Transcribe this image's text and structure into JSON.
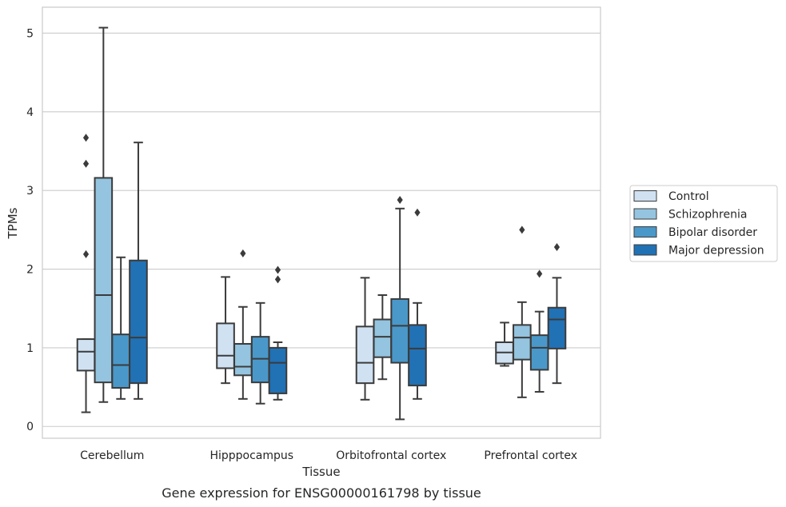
{
  "chart_data": {
    "type": "boxplot",
    "caption": "Gene expression for ENSG00000161798 by tissue",
    "xlabel": "Tissue",
    "ylabel": "TPMs",
    "ylim": [
      -0.15,
      5.33
    ],
    "yticks": [
      0,
      1,
      2,
      3,
      4,
      5
    ],
    "grid": "horizontal",
    "legend_position": "right",
    "categories": [
      "Cerebellum",
      "Hipppocampus",
      "Orbitofrontal cortex",
      "Prefrontal cortex"
    ],
    "series": [
      {
        "name": "Control",
        "color": "#d0e1f2",
        "boxes": [
          {
            "whislo": 0.18,
            "q1": 0.71,
            "med": 0.95,
            "q3": 1.11,
            "whishi": 1.11,
            "fliers": [
              3.67,
              3.34,
              2.19
            ]
          },
          {
            "whislo": 0.55,
            "q1": 0.74,
            "med": 0.9,
            "q3": 1.31,
            "whishi": 1.9,
            "fliers": []
          },
          {
            "whislo": 0.34,
            "q1": 0.55,
            "med": 0.81,
            "q3": 1.27,
            "whishi": 1.89,
            "fliers": []
          },
          {
            "whislo": 0.77,
            "q1": 0.8,
            "med": 0.94,
            "q3": 1.07,
            "whishi": 1.32,
            "fliers": []
          }
        ]
      },
      {
        "name": "Schizophrenia",
        "color": "#94c4df",
        "boxes": [
          {
            "whislo": 0.31,
            "q1": 0.56,
            "med": 1.67,
            "q3": 3.16,
            "whishi": 5.07,
            "fliers": []
          },
          {
            "whislo": 0.35,
            "q1": 0.65,
            "med": 0.76,
            "q3": 1.05,
            "whishi": 1.52,
            "fliers": [
              2.2
            ]
          },
          {
            "whislo": 0.6,
            "q1": 0.88,
            "med": 1.14,
            "q3": 1.36,
            "whishi": 1.67,
            "fliers": []
          },
          {
            "whislo": 0.37,
            "q1": 0.85,
            "med": 1.13,
            "q3": 1.29,
            "whishi": 1.58,
            "fliers": [
              2.5
            ]
          }
        ]
      },
      {
        "name": "Bipolar disorder",
        "color": "#4a98c9",
        "boxes": [
          {
            "whislo": 0.35,
            "q1": 0.49,
            "med": 0.78,
            "q3": 1.17,
            "whishi": 2.15,
            "fliers": []
          },
          {
            "whislo": 0.29,
            "q1": 0.56,
            "med": 0.86,
            "q3": 1.14,
            "whishi": 1.57,
            "fliers": []
          },
          {
            "whislo": 0.09,
            "q1": 0.81,
            "med": 1.28,
            "q3": 1.62,
            "whishi": 2.77,
            "fliers": [
              2.88
            ]
          },
          {
            "whislo": 0.44,
            "q1": 0.72,
            "med": 1.0,
            "q3": 1.16,
            "whishi": 1.46,
            "fliers": [
              1.94
            ]
          }
        ]
      },
      {
        "name": "Major depression",
        "color": "#2171b5",
        "boxes": [
          {
            "whislo": 0.35,
            "q1": 0.55,
            "med": 1.13,
            "q3": 2.11,
            "whishi": 3.61,
            "fliers": []
          },
          {
            "whislo": 0.34,
            "q1": 0.42,
            "med": 0.81,
            "q3": 1.0,
            "whishi": 1.07,
            "fliers": [
              1.99,
              1.87
            ]
          },
          {
            "whislo": 0.35,
            "q1": 0.52,
            "med": 0.99,
            "q3": 1.29,
            "whishi": 1.57,
            "fliers": [
              2.72
            ]
          },
          {
            "whislo": 0.55,
            "q1": 0.99,
            "med": 1.36,
            "q3": 1.51,
            "whishi": 1.89,
            "fliers": [
              2.28
            ]
          }
        ]
      }
    ]
  }
}
